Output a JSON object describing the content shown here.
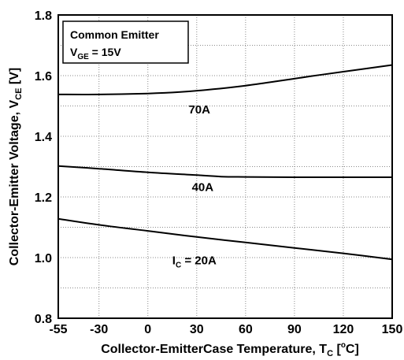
{
  "chart_data": {
    "type": "line",
    "title": "",
    "xlabel": {
      "main": "Collector-EmitterCase Temperature, T",
      "sub": "C",
      "unit_open": " [",
      "unit_sup": "o",
      "unit_close": "C]"
    },
    "ylabel": {
      "main": "Collector-Emitter Voltage, V",
      "sub": "CE",
      "unit": " [V]"
    },
    "xlim": [
      -55,
      150
    ],
    "ylim": [
      0.8,
      1.8
    ],
    "x_ticks": [
      -55,
      -30,
      0,
      30,
      60,
      90,
      120,
      150
    ],
    "x_tick_labels": [
      "-55",
      "-30",
      "0",
      "30",
      "60",
      "90",
      "120",
      "150"
    ],
    "y_ticks": [
      0.8,
      1.0,
      1.2,
      1.4,
      1.6,
      1.8
    ],
    "y_tick_labels": [
      "0.8",
      "1.0",
      "1.2",
      "1.4",
      "1.6",
      "1.8"
    ],
    "minor_y_ticks": [
      0.9,
      1.1,
      1.3,
      1.5,
      1.7
    ],
    "grid": true,
    "legend": {
      "position": "top-left",
      "line1": "Common Emitter",
      "line2_main": "V",
      "line2_sub": "GE",
      "line2_rest": " = 15V"
    },
    "series": [
      {
        "name": "70A",
        "label_main": "70A",
        "label_sub": "",
        "label_rest": "",
        "label_at": [
          25,
          1.475
        ],
        "x": [
          -55,
          -30,
          0,
          20,
          40,
          60,
          80,
          100,
          120,
          150
        ],
        "y": [
          1.538,
          1.538,
          1.541,
          1.546,
          1.555,
          1.567,
          1.582,
          1.598,
          1.613,
          1.635
        ]
      },
      {
        "name": "40A",
        "label_main": "40A",
        "label_sub": "",
        "label_rest": "",
        "label_at": [
          27,
          1.22
        ],
        "x": [
          -55,
          -30,
          0,
          30,
          45,
          60,
          90,
          120,
          150
        ],
        "y": [
          1.302,
          1.293,
          1.281,
          1.272,
          1.267,
          1.266,
          1.265,
          1.265,
          1.265
        ]
      },
      {
        "name": "IC = 20A",
        "label_main": "I",
        "label_sub": "C",
        "label_rest": " = 20A",
        "label_at": [
          15,
          0.978
        ],
        "x": [
          -55,
          -30,
          0,
          30,
          60,
          90,
          120,
          150
        ],
        "y": [
          1.128,
          1.108,
          1.088,
          1.068,
          1.05,
          1.032,
          1.014,
          0.994
        ]
      }
    ]
  }
}
